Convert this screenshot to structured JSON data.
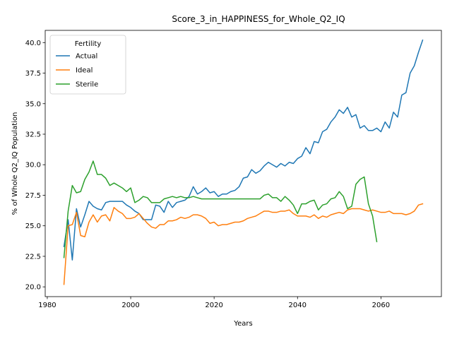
{
  "chart_data": {
    "type": "line",
    "title": "Score_3_in_HAPPINESS_for_Whole_Q2_IQ",
    "xlabel": "Years",
    "ylabel": "% of Whole Q2_IQ Population",
    "xlim": [
      1979.5,
      2074.5
    ],
    "ylim": [
      19.2,
      41.0
    ],
    "xticks": [
      1980,
      2000,
      2020,
      2040,
      2060
    ],
    "yticks": [
      20.0,
      22.5,
      25.0,
      27.5,
      30.0,
      32.5,
      35.0,
      37.5,
      40.0
    ],
    "xtick_labels": [
      "1980",
      "2000",
      "2020",
      "2040",
      "2060"
    ],
    "ytick_labels": [
      "20.0",
      "22.5",
      "25.0",
      "27.5",
      "30.0",
      "32.5",
      "35.0",
      "37.5",
      "40.0"
    ],
    "grid": false,
    "legend": {
      "title": "Fertility",
      "position": "upper-left"
    },
    "series": [
      {
        "name": "Actual",
        "color": "#1f77b4",
        "x": [
          1984,
          1985,
          1986,
          1987,
          1988,
          1989,
          1990,
          1991,
          1992,
          1993,
          1994,
          1995,
          1996,
          1997,
          1998,
          1999,
          2000,
          2001,
          2002,
          2003,
          2004,
          2005,
          2006,
          2007,
          2008,
          2009,
          2010,
          2011,
          2012,
          2013,
          2014,
          2015,
          2016,
          2017,
          2018,
          2019,
          2020,
          2021,
          2022,
          2023,
          2024,
          2025,
          2026,
          2027,
          2028,
          2029,
          2030,
          2031,
          2032,
          2033,
          2034,
          2035,
          2036,
          2037,
          2038,
          2039,
          2040,
          2041,
          2042,
          2043,
          2044,
          2045,
          2046,
          2047,
          2048,
          2049,
          2050,
          2051,
          2052,
          2053,
          2054,
          2055,
          2056,
          2057,
          2058,
          2059,
          2060,
          2061,
          2062,
          2063,
          2064,
          2065,
          2066,
          2067,
          2068,
          2069,
          2070
        ],
        "y": [
          23.3,
          25.5,
          22.2,
          26.4,
          24.9,
          25.9,
          27.0,
          26.6,
          26.4,
          26.3,
          26.9,
          27.0,
          27.0,
          27.0,
          27.0,
          26.7,
          26.5,
          26.2,
          26.0,
          25.5,
          25.5,
          25.5,
          26.7,
          26.6,
          26.1,
          27.0,
          26.5,
          26.9,
          27.0,
          27.1,
          27.4,
          28.2,
          27.6,
          27.8,
          28.1,
          27.7,
          27.8,
          27.4,
          27.6,
          27.6,
          27.8,
          27.9,
          28.2,
          28.9,
          29.0,
          29.6,
          29.3,
          29.5,
          29.9,
          30.2,
          30.0,
          29.8,
          30.1,
          29.9,
          30.2,
          30.1,
          30.5,
          30.7,
          31.4,
          30.9,
          31.9,
          31.8,
          32.7,
          32.9,
          33.5,
          33.9,
          34.5,
          34.2,
          34.7,
          33.9,
          34.1,
          33.0,
          33.2,
          32.8,
          32.8,
          33.0,
          32.7,
          33.5,
          33.0,
          34.3,
          33.9,
          35.7,
          35.9,
          37.5,
          38.1,
          39.2,
          40.2
        ]
      },
      {
        "name": "Ideal",
        "color": "#ff7f0e",
        "x": [
          1984,
          1985,
          1986,
          1987,
          1988,
          1989,
          1990,
          1991,
          1992,
          1993,
          1994,
          1995,
          1996,
          1997,
          1998,
          1999,
          2000,
          2001,
          2002,
          2003,
          2004,
          2005,
          2006,
          2007,
          2008,
          2009,
          2010,
          2011,
          2012,
          2013,
          2014,
          2015,
          2016,
          2017,
          2018,
          2019,
          2020,
          2021,
          2022,
          2023,
          2024,
          2025,
          2026,
          2027,
          2028,
          2029,
          2030,
          2031,
          2032,
          2033,
          2034,
          2035,
          2036,
          2037,
          2038,
          2039,
          2040,
          2041,
          2042,
          2043,
          2044,
          2045,
          2046,
          2047,
          2048,
          2049,
          2050,
          2051,
          2052,
          2053,
          2054,
          2055,
          2056,
          2057,
          2058,
          2059,
          2060,
          2061,
          2062,
          2063,
          2064,
          2065,
          2066,
          2067,
          2068,
          2069,
          2070
        ],
        "y": [
          20.2,
          25.0,
          25.1,
          26.1,
          24.2,
          24.1,
          25.3,
          25.9,
          25.3,
          25.8,
          25.9,
          25.4,
          26.5,
          26.2,
          26.0,
          25.6,
          25.6,
          25.7,
          26.0,
          25.6,
          25.2,
          24.9,
          24.8,
          25.1,
          25.1,
          25.4,
          25.4,
          25.5,
          25.7,
          25.6,
          25.7,
          25.9,
          25.9,
          25.8,
          25.6,
          25.2,
          25.3,
          25.0,
          25.1,
          25.1,
          25.2,
          25.3,
          25.3,
          25.4,
          25.6,
          25.7,
          25.8,
          26.0,
          26.2,
          26.2,
          26.1,
          26.1,
          26.2,
          26.2,
          26.3,
          26.0,
          25.8,
          25.8,
          25.8,
          25.7,
          25.9,
          25.6,
          25.8,
          25.7,
          25.9,
          26.0,
          26.1,
          26.0,
          26.3,
          26.4,
          26.4,
          26.4,
          26.3,
          26.2,
          26.3,
          26.2,
          26.1,
          26.1,
          26.2,
          26.0,
          26.0,
          26.0,
          25.9,
          26.0,
          26.2,
          26.7,
          26.8
        ]
      },
      {
        "name": "Sterile",
        "color": "#2ca02c",
        "x": [
          1984,
          1985,
          1986,
          1987,
          1988,
          1989,
          1990,
          1991,
          1992,
          1993,
          1994,
          1995,
          1996,
          1997,
          1998,
          1999,
          2000,
          2001,
          2002,
          2003,
          2004,
          2005,
          2006,
          2007,
          2008,
          2009,
          2010,
          2011,
          2012,
          2013,
          2014,
          2015,
          2016,
          2017,
          2018,
          2019,
          2020,
          2021,
          2022,
          2023,
          2024,
          2025,
          2026,
          2027,
          2028,
          2029,
          2030,
          2031,
          2032,
          2033,
          2034,
          2035,
          2036,
          2037,
          2038,
          2039,
          2040,
          2041,
          2042,
          2043,
          2044,
          2045,
          2046,
          2047,
          2048,
          2049,
          2050,
          2051,
          2052,
          2053,
          2054,
          2055,
          2056,
          2057,
          2058,
          2059
        ],
        "y": [
          22.4,
          26.2,
          28.3,
          27.7,
          27.8,
          28.8,
          29.4,
          30.3,
          29.2,
          29.2,
          28.9,
          28.3,
          28.5,
          28.3,
          28.1,
          27.8,
          28.1,
          26.9,
          27.1,
          27.4,
          27.3,
          26.9,
          26.9,
          26.9,
          27.2,
          27.3,
          27.4,
          27.3,
          27.4,
          27.3,
          27.3,
          27.4,
          27.3,
          27.2,
          27.2,
          27.2,
          27.2,
          27.2,
          27.2,
          27.2,
          27.2,
          27.2,
          27.2,
          27.2,
          27.2,
          27.2,
          27.2,
          27.2,
          27.5,
          27.6,
          27.3,
          27.3,
          27.0,
          27.4,
          27.1,
          26.7,
          26.0,
          26.8,
          26.8,
          27.0,
          27.1,
          26.3,
          26.7,
          26.8,
          27.2,
          27.3,
          27.8,
          27.4,
          26.4,
          26.6,
          28.4,
          28.8,
          29.0,
          26.8,
          25.8,
          23.7
        ]
      }
    ]
  }
}
